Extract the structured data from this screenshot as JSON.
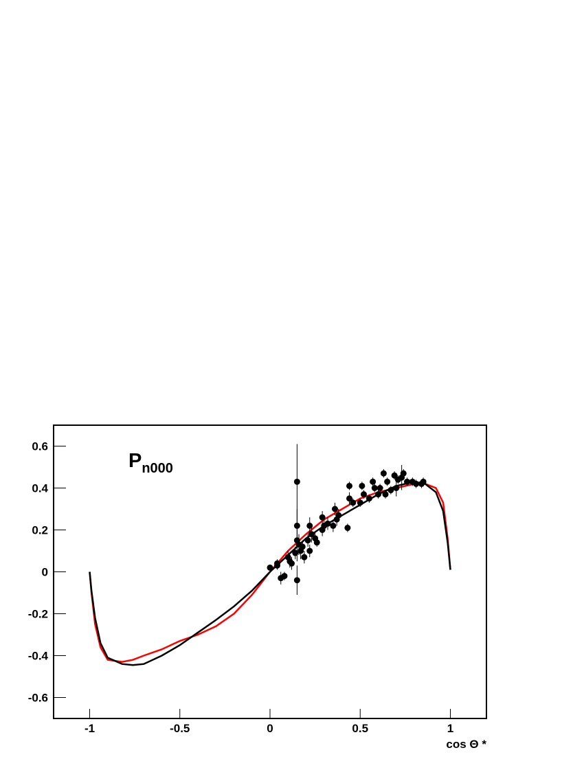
{
  "chart_data": {
    "type": "line",
    "annotation": {
      "text": "P",
      "subscript": "n000"
    },
    "x_label": "cos Θ *",
    "xlim": [
      -1.2,
      1.2
    ],
    "xticks": [
      -1,
      -0.5,
      0,
      0.5,
      1
    ],
    "ylim": [
      -0.7,
      0.7
    ],
    "yticks": [
      -0.6,
      -0.4,
      -0.2,
      0,
      0.2,
      0.4,
      0.6
    ],
    "x": [
      -1,
      -0.99,
      -0.97,
      -0.94,
      -0.9,
      -0.82,
      -0.76,
      -0.7,
      -0.6,
      -0.5,
      -0.4,
      -0.3,
      -0.2,
      -0.1,
      0,
      0.1,
      0.2,
      0.3,
      0.4,
      0.5,
      0.6,
      0.7,
      0.8,
      0.86,
      0.92,
      0.96,
      0.985,
      1
    ],
    "series": [
      {
        "color": "#ff0000",
        "values": [
          0,
          -0.1,
          -0.25,
          -0.36,
          -0.42,
          -0.43,
          -0.42,
          -0.4,
          -0.37,
          -0.33,
          -0.3,
          -0.26,
          -0.2,
          -0.11,
          0,
          0.1,
          0.18,
          0.25,
          0.3,
          0.35,
          0.38,
          0.4,
          0.42,
          0.42,
          0.4,
          0.33,
          0.16,
          0.01
        ]
      },
      {
        "color": "#000000",
        "values": [
          0,
          -0.09,
          -0.22,
          -0.34,
          -0.41,
          -0.44,
          -0.445,
          -0.44,
          -0.4,
          -0.35,
          -0.29,
          -0.23,
          -0.165,
          -0.09,
          0,
          0.08,
          0.16,
          0.22,
          0.27,
          0.32,
          0.37,
          0.41,
          0.43,
          0.42,
          0.38,
          0.29,
          0.14,
          0.01
        ]
      }
    ],
    "points": {
      "color": "#000000",
      "x": [
        0.0,
        0.04,
        0.04,
        0.06,
        0.08,
        0.1,
        0.11,
        0.12,
        0.14,
        0.15,
        0.15,
        0.15,
        0.15,
        0.16,
        0.17,
        0.18,
        0.19,
        0.21,
        0.22,
        0.22,
        0.23,
        0.25,
        0.26,
        0.29,
        0.29,
        0.3,
        0.32,
        0.35,
        0.36,
        0.37,
        0.38,
        0.43,
        0.44,
        0.44,
        0.46,
        0.5,
        0.51,
        0.52,
        0.55,
        0.57,
        0.58,
        0.6,
        0.61,
        0.63,
        0.64,
        0.65,
        0.67,
        0.69,
        0.7,
        0.71,
        0.73,
        0.74,
        0.76,
        0.79,
        0.81,
        0.84,
        0.85
      ],
      "values": [
        0.02,
        0.03,
        0.04,
        -0.03,
        -0.02,
        0.07,
        0.05,
        0.04,
        0.09,
        0.43,
        -0.04,
        0.15,
        0.22,
        0.13,
        0.1,
        0.12,
        0.07,
        0.15,
        0.22,
        0.1,
        0.18,
        0.16,
        0.14,
        0.26,
        0.2,
        0.22,
        0.23,
        0.22,
        0.3,
        0.25,
        0.27,
        0.21,
        0.41,
        0.35,
        0.33,
        0.33,
        0.41,
        0.37,
        0.35,
        0.43,
        0.4,
        0.37,
        0.4,
        0.47,
        0.37,
        0.43,
        0.39,
        0.46,
        0.4,
        0.44,
        0.45,
        0.47,
        0.43,
        0.43,
        0.42,
        0.42,
        0.43
      ],
      "errors": [
        0.01,
        0.02,
        0.02,
        0.03,
        0.02,
        0.03,
        0.03,
        0.03,
        0.03,
        0.18,
        0.07,
        0.1,
        0.08,
        0.05,
        0.04,
        0.03,
        0.03,
        0.03,
        0.04,
        0.03,
        0.04,
        0.03,
        0.02,
        0.03,
        0.03,
        0.03,
        0.03,
        0.03,
        0.03,
        0.03,
        0.03,
        0.02,
        0.02,
        0.03,
        0.02,
        0.02,
        0.02,
        0.02,
        0.02,
        0.02,
        0.02,
        0.02,
        0.02,
        0.02,
        0.02,
        0.02,
        0.02,
        0.02,
        0.04,
        0.02,
        0.06,
        0.02,
        0.02,
        0.02,
        0.02,
        0.02,
        0.02
      ]
    }
  }
}
